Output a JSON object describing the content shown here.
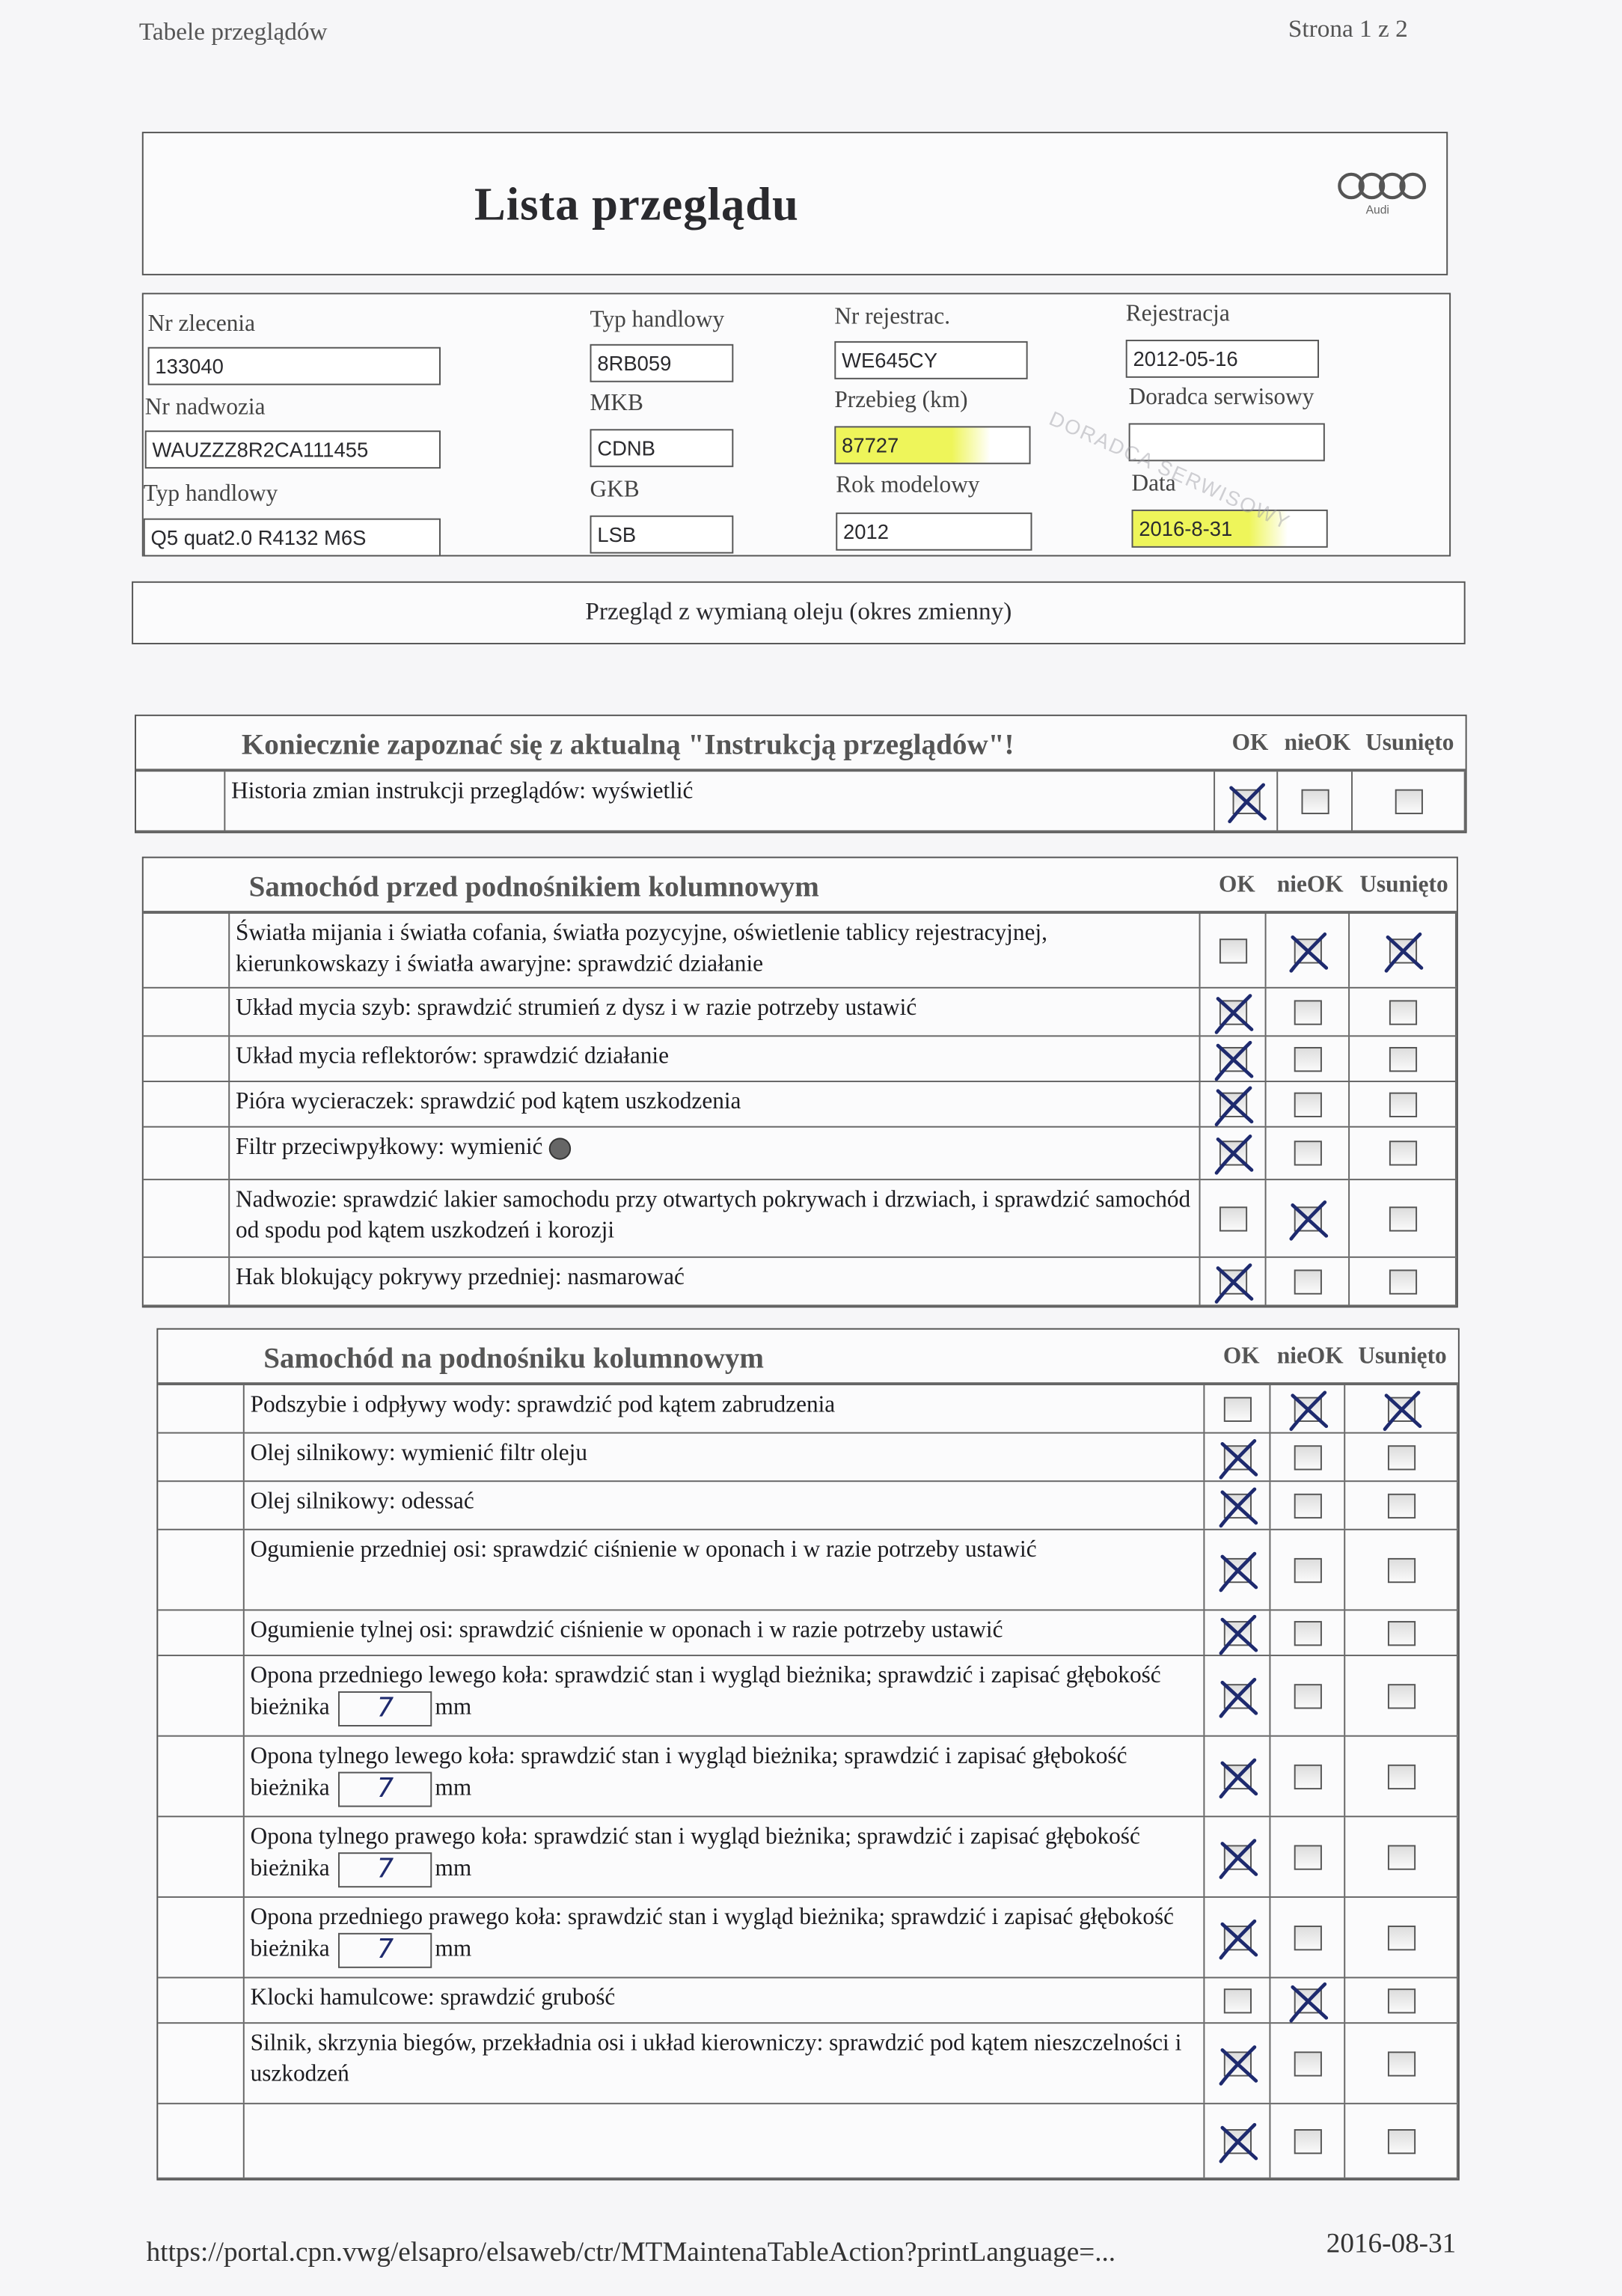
{
  "header": {
    "left": "Tabele przeglądów",
    "right": "Strona 1 z 2"
  },
  "title": "Lista przeglądu",
  "logo": {
    "brand": "Audi"
  },
  "info": {
    "nr_zlecenia": {
      "label": "Nr zlecenia",
      "value": "133040"
    },
    "nr_nadwozia": {
      "label": "Nr nadwozia",
      "value": "WAUZZZ8R2CA111455"
    },
    "typ_handlowy": {
      "label": "Typ handlowy",
      "value": "Q5 quat2.0 R4132 M6S"
    },
    "typ_handlowy2": {
      "label": "Typ handlowy",
      "value": "8RB059"
    },
    "mkb": {
      "label": "MKB",
      "value": "CDNB"
    },
    "gkb": {
      "label": "GKB",
      "value": "LSB"
    },
    "nr_rejestrac": {
      "label": "Nr rejestrac.",
      "value": "WE645CY"
    },
    "przebieg": {
      "label": "Przebieg (km)",
      "value": "87727"
    },
    "rok_modelowy": {
      "label": "Rok modelowy",
      "value": "2012"
    },
    "rejestracja": {
      "label": "Rejestracja",
      "value": "2012-05-16"
    },
    "doradca": {
      "label": "Doradca serwisowy",
      "value": ""
    },
    "data": {
      "label": "Data",
      "value": "2016-8-31"
    },
    "stamp": "DORADCA SERWISOWY"
  },
  "service_type": "Przegląd z wymianą oleju (okres zmienny)",
  "columns": {
    "ok": "OK",
    "nieok": "nieOK",
    "usunieto": "Usunięto"
  },
  "sections": [
    {
      "title": "Koniecznie zapoznać się z aktualną \"Instrukcją przeglądów\"!",
      "rows": [
        {
          "text": "Historia zmian instrukcji przeglądów: wyświetlić",
          "ok": true,
          "nieok": false,
          "usunieto": false
        }
      ]
    },
    {
      "title": "Samochód przed podnośnikiem kolumnowym",
      "rows": [
        {
          "text": "Światła mijania i światła cofania, światła pozycyjne, oświetlenie tablicy rejestracyjnej, kierunkowskazy i światła awaryjne: sprawdzić działanie",
          "ok": false,
          "nieok": true,
          "usunieto": true
        },
        {
          "text": "Układ mycia szyb: sprawdzić strumień z dysz i w razie potrzeby ustawić",
          "ok": true,
          "nieok": false,
          "usunieto": false
        },
        {
          "text": "Układ mycia reflektorów: sprawdzić działanie",
          "ok": true,
          "nieok": false,
          "usunieto": false
        },
        {
          "text": "Pióra wycieraczek: sprawdzić pod kątem uszkodzenia",
          "ok": true,
          "nieok": false,
          "usunieto": false
        },
        {
          "text": "Filtr przeciwpyłkowy: wymienić",
          "dot": true,
          "ok": true,
          "nieok": false,
          "usunieto": false
        },
        {
          "text": "Nadwozie: sprawdzić lakier samochodu przy otwartych pokrywach i drzwiach, i sprawdzić samochód od spodu pod kątem uszkodzeń i korozji",
          "ok": false,
          "nieok": true,
          "usunieto": false
        },
        {
          "text": "Hak blokujący pokrywy przedniej: nasmarować",
          "ok": true,
          "nieok": false,
          "usunieto": false
        }
      ]
    },
    {
      "title": "Samochód na podnośniku kolumnowym",
      "rows": [
        {
          "text": "Podszybie i odpływy wody: sprawdzić pod kątem zabrudzenia",
          "ok": false,
          "nieok": true,
          "usunieto": true
        },
        {
          "text": "Olej silnikowy: wymienić filtr oleju",
          "ok": true,
          "nieok": false,
          "usunieto": false
        },
        {
          "text": "Olej silnikowy: odessać",
          "ok": true,
          "nieok": false,
          "usunieto": false
        },
        {
          "text": "Ogumienie przedniej osi: sprawdzić ciśnienie w oponach i w razie potrzeby ustawić",
          "ok": true,
          "nieok": false,
          "usunieto": false
        },
        {
          "text": "Ogumienie tylnej osi: sprawdzić ciśnienie w oponach i w razie potrzeby ustawić",
          "ok": true,
          "nieok": false,
          "usunieto": false
        },
        {
          "text": "Opona przedniego lewego koła: sprawdzić stan i wygląd bieżnika; sprawdzić i zapisać głębokość bieżnika",
          "depth": "7",
          "unit": "mm",
          "ok": true,
          "nieok": false,
          "usunieto": false
        },
        {
          "text": "Opona tylnego lewego koła: sprawdzić stan i wygląd bieżnika; sprawdzić i zapisać głębokość bieżnika",
          "depth": "7",
          "unit": "mm",
          "ok": true,
          "nieok": false,
          "usunieto": false
        },
        {
          "text": "Opona tylnego prawego koła: sprawdzić stan i wygląd bieżnika; sprawdzić i zapisać głębokość bieżnika",
          "depth": "7",
          "unit": "mm",
          "ok": true,
          "nieok": false,
          "usunieto": false
        },
        {
          "text": "Opona przedniego prawego koła: sprawdzić stan i wygląd bieżnika; sprawdzić i zapisać głębokość bieżnika",
          "depth": "7",
          "unit": "mm",
          "ok": true,
          "nieok": false,
          "usunieto": false
        },
        {
          "text": "Klocki hamulcowe: sprawdzić grubość",
          "ok": false,
          "nieok": true,
          "usunieto": false
        },
        {
          "text": "Silnik, skrzynia biegów, przekładnia osi i układ kierowniczy: sprawdzić pod kątem nieszczelności i uszkodzeń",
          "ok": true,
          "nieok": false,
          "usunieto": false
        },
        {
          "text": "",
          "ok": true,
          "nieok": false,
          "usunieto": false
        }
      ]
    }
  ],
  "footer": {
    "url": "https://portal.cpn.vwg/elsapro/elsaweb/ctr/MTMaintenaTableAction?printLanguage=...",
    "date": "2016-08-31"
  },
  "colors": {
    "ink": "#1e2a6e",
    "highlight": "#eef55a"
  }
}
